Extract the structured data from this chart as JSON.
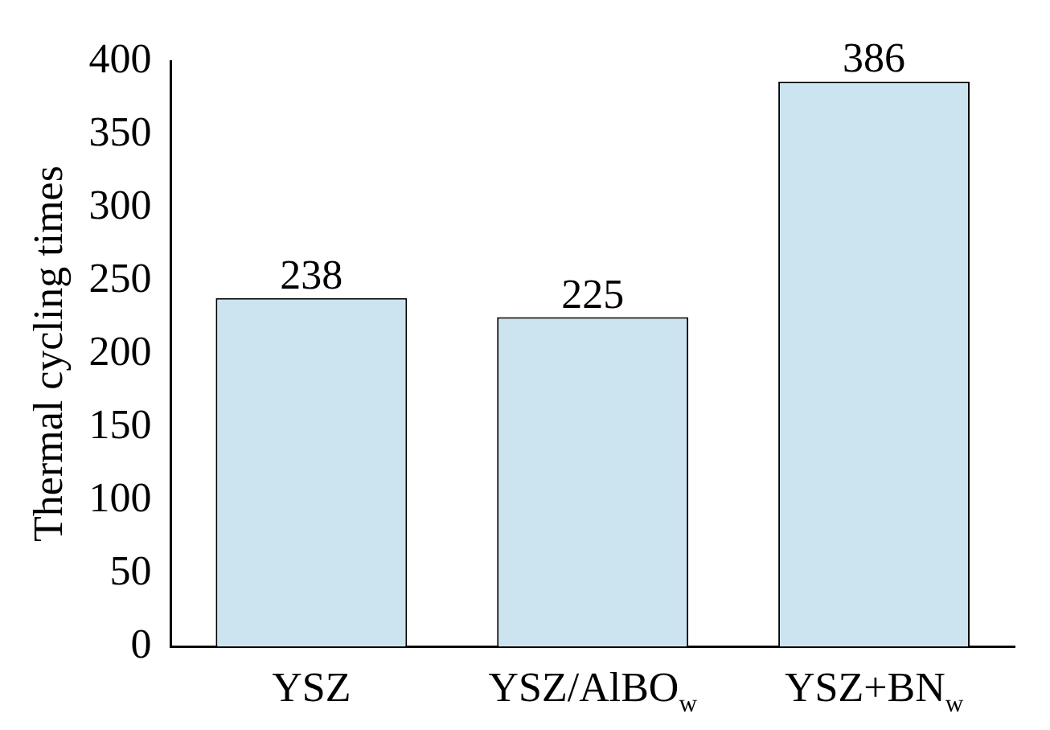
{
  "chart_data": {
    "type": "bar",
    "ylabel": "Thermal cycling times",
    "categories": [
      "YSZ",
      "YSZ/AlBO$_{w}$",
      "YSZ+BN$_{w}$"
    ],
    "values": [
      238,
      225,
      386
    ],
    "color": "#cce4f0",
    "ylim": [
      0,
      400
    ],
    "yticks": [
      0,
      50,
      100,
      150,
      200,
      250,
      300,
      350,
      400
    ],
    "data_labels": true,
    "grid": false,
    "legend": false
  }
}
